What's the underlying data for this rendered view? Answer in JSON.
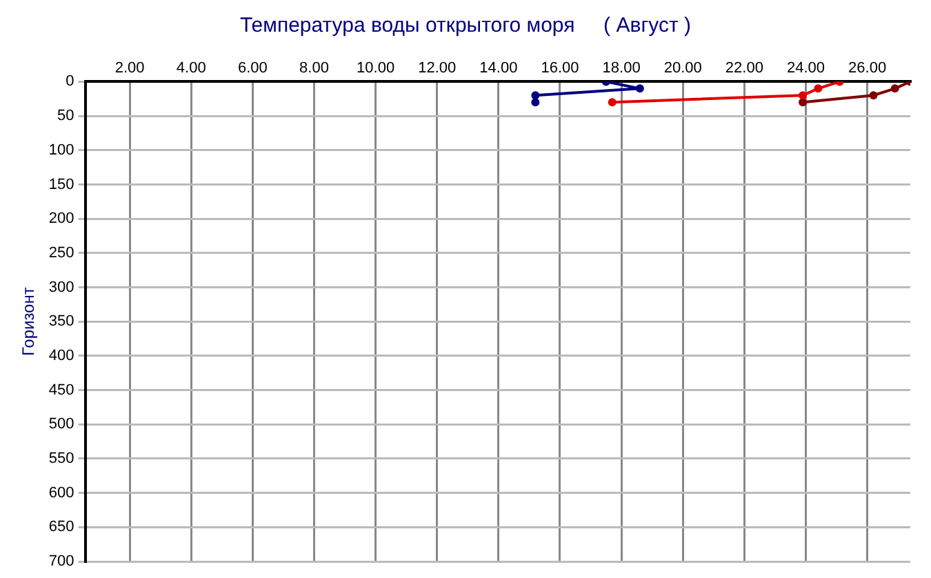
{
  "chart_data": {
    "type": "line",
    "title": "Температура воды открытого моря     ( Август )",
    "ylabel": "Горизонт",
    "xlim": [
      0.55,
      27.4
    ],
    "xticks": [
      {
        "value": 2,
        "label": "2.00"
      },
      {
        "value": 4,
        "label": "4.00"
      },
      {
        "value": 6,
        "label": "6.00"
      },
      {
        "value": 8,
        "label": "8.00"
      },
      {
        "value": 10,
        "label": "10.00"
      },
      {
        "value": 12,
        "label": "12.00"
      },
      {
        "value": 14,
        "label": "14.00"
      },
      {
        "value": 16,
        "label": "16.00"
      },
      {
        "value": 18,
        "label": "18.00"
      },
      {
        "value": 20,
        "label": "20.00"
      },
      {
        "value": 22,
        "label": "22.00"
      },
      {
        "value": 24,
        "label": "24.00"
      },
      {
        "value": 26,
        "label": "26.00"
      }
    ],
    "ylim": [
      700,
      0
    ],
    "yticks": [
      0,
      50,
      100,
      150,
      200,
      250,
      300,
      350,
      400,
      450,
      500,
      550,
      600,
      650,
      700
    ],
    "grid": true,
    "legend": false,
    "marker": "circle",
    "line_style": "solid",
    "series": [
      {
        "color": "#000080",
        "x": [
          17.5,
          18.6,
          15.2,
          15.2
        ],
        "values": [
          0,
          10,
          20,
          30
        ]
      },
      {
        "color": "#e00000",
        "x": [
          25.1,
          24.4,
          23.9,
          17.7
        ],
        "values": [
          0,
          10,
          20,
          30
        ]
      },
      {
        "color": "#800000",
        "x": [
          27.4,
          26.9,
          26.2,
          23.9
        ],
        "values": [
          0,
          10,
          20,
          30
        ]
      }
    ]
  }
}
